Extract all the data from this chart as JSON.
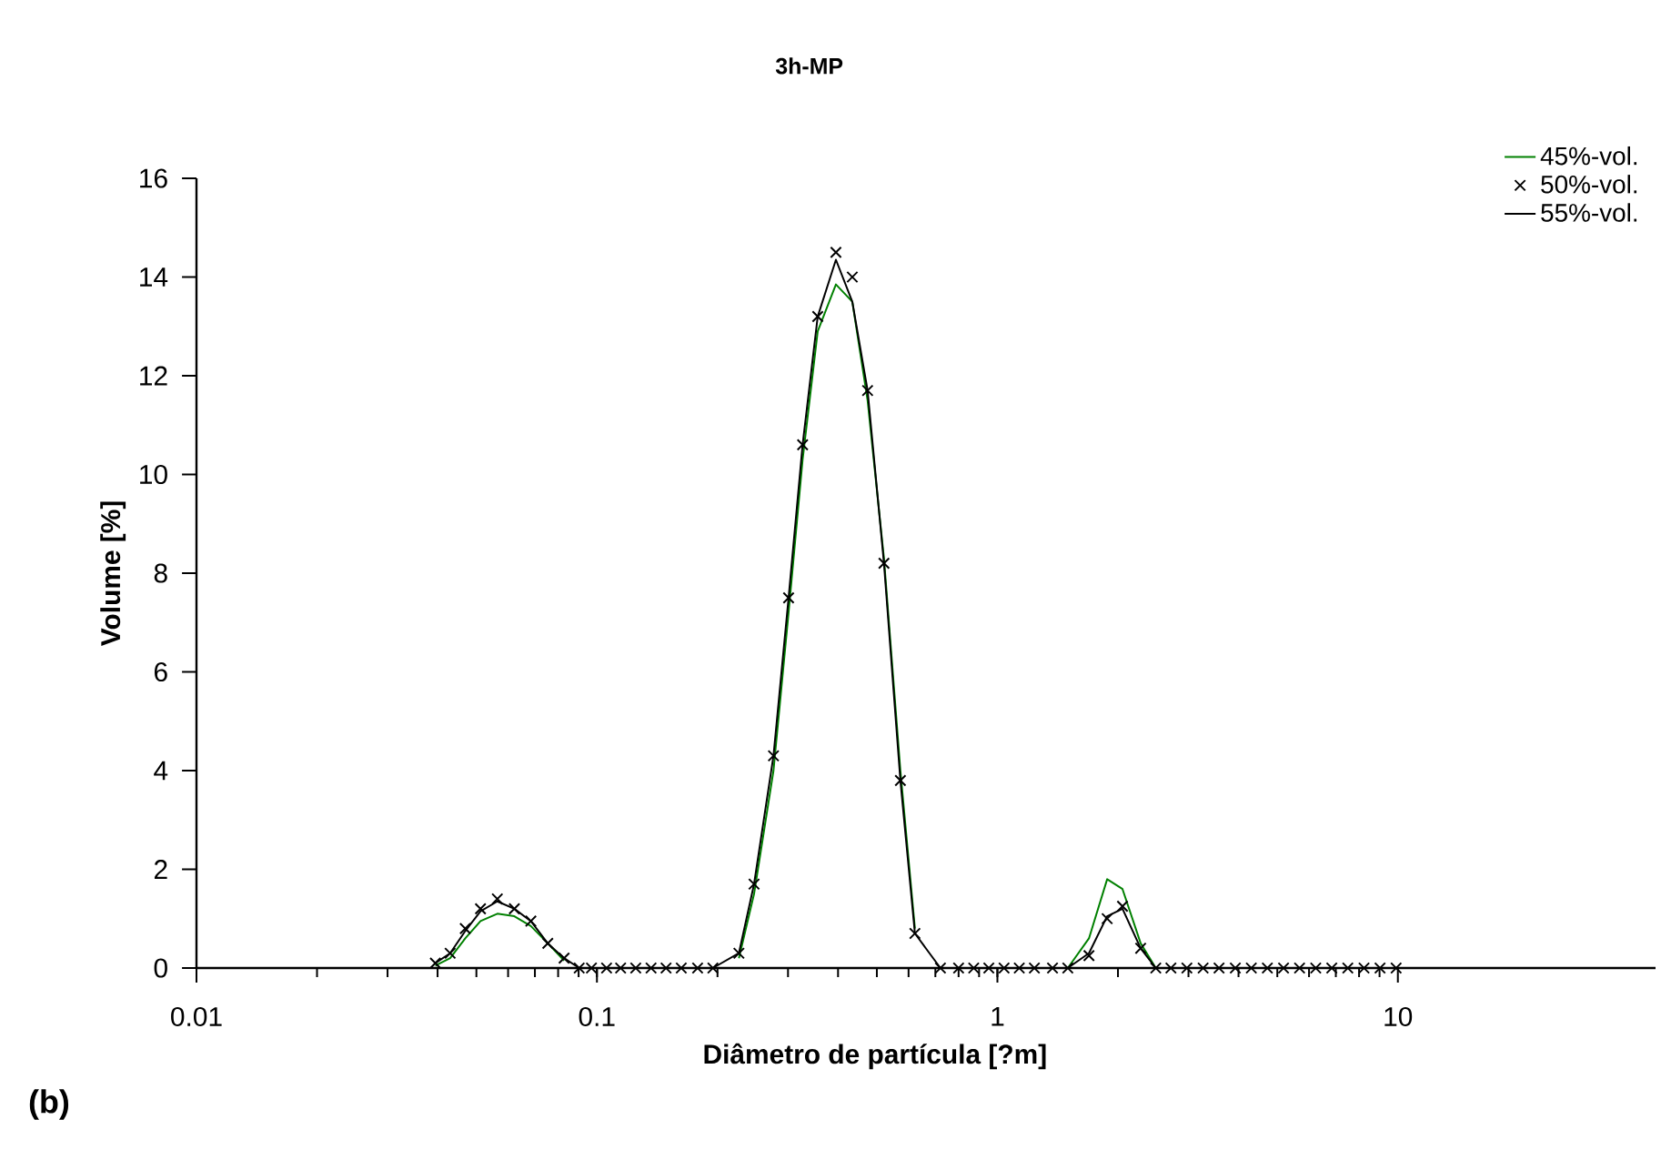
{
  "chart_data": {
    "type": "line",
    "title": "3h-MP",
    "xlabel": "Diâmetro de partícula [?m]",
    "ylabel": "Volume [%]",
    "annotations": [
      "**(b)**"
    ],
    "log": "x",
    "grid": false,
    "legend": "top right",
    "line_style": "solid",
    "xlim": [
      0.01,
      44
    ],
    "ylim": [
      0,
      16
    ],
    "xticks": [
      0.01,
      0.1,
      1,
      10
    ],
    "yticks": [
      0,
      2,
      4,
      6,
      8,
      10,
      12,
      14,
      16
    ],
    "x": [
      0.0395,
      0.043,
      0.0469,
      0.0512,
      0.0564,
      0.0622,
      0.0684,
      0.0754,
      0.0828,
      0.0903,
      0.0969,
      0.1057,
      0.1146,
      0.125,
      0.1365,
      0.1488,
      0.1624,
      0.1784,
      0.1948,
      0.2262,
      0.2468,
      0.276,
      0.301,
      0.3263,
      0.3559,
      0.3952,
      0.4342,
      0.4741,
      0.5209,
      0.5725,
      0.6224,
      0.7207,
      0.8,
      0.8727,
      0.9519,
      1.039,
      1.134,
      1.237,
      1.373,
      1.499,
      1.693,
      1.88,
      2.053,
      2.279,
      2.486,
      2.712,
      2.973,
      3.264,
      3.577,
      3.928,
      4.306,
      4.722,
      5.183,
      5.683,
      6.237,
      6.839,
      7.499,
      8.232,
      9.026,
      9.9
    ],
    "series": [
      {
        "name": "45%-vol.",
        "type": "line",
        "marker": "none",
        "color": "#008000",
        "values": [
          0.05,
          0.2,
          0.6,
          0.95,
          1.1,
          1.05,
          0.85,
          0.5,
          0.15,
          null,
          null,
          null,
          null,
          null,
          null,
          null,
          null,
          null,
          null,
          0.2,
          1.5,
          4.0,
          7.2,
          10.3,
          12.9,
          13.85,
          13.5,
          11.5,
          8.3,
          4.0,
          0.8,
          null,
          null,
          null,
          null,
          null,
          null,
          null,
          null,
          0,
          0.6,
          1.8,
          1.6,
          0.5,
          0,
          null,
          null,
          null,
          null,
          null,
          null,
          null,
          null,
          null,
          null,
          null,
          null,
          null,
          null,
          null
        ]
      },
      {
        "name": "50%-vol.",
        "type": "scatter",
        "marker": "cross",
        "color": "#000000",
        "values": [
          0.1,
          0.3,
          0.8,
          1.2,
          1.4,
          1.2,
          0.95,
          0.5,
          0.2,
          0,
          0,
          0,
          0,
          0,
          0,
          0,
          0,
          0,
          0,
          0.3,
          1.7,
          4.3,
          7.5,
          10.6,
          13.2,
          14.5,
          14.0,
          11.7,
          8.2,
          3.8,
          0.7,
          0,
          0,
          0,
          0,
          0,
          0,
          0,
          0,
          0,
          0.25,
          1.0,
          1.25,
          0.4,
          0,
          0,
          0,
          0,
          0,
          0,
          0,
          0,
          0,
          0,
          0,
          0,
          0,
          0,
          0,
          0
        ]
      },
      {
        "name": "55%-vol.",
        "type": "line",
        "marker": "none",
        "color": "#000000",
        "values": [
          0.1,
          0.3,
          0.75,
          1.15,
          1.35,
          1.2,
          0.95,
          0.5,
          0.2,
          0,
          0,
          0,
          0,
          0,
          0,
          0,
          0,
          0,
          0,
          0.3,
          1.7,
          4.3,
          7.5,
          10.6,
          13.2,
          14.35,
          13.5,
          11.7,
          8.2,
          3.8,
          0.7,
          0,
          0,
          0,
          0,
          0,
          0,
          0,
          0,
          0,
          0.3,
          1.05,
          1.2,
          0.4,
          0,
          0,
          0,
          0,
          0,
          0,
          0,
          0,
          0,
          0,
          0,
          0,
          0,
          0,
          0,
          0
        ]
      }
    ]
  }
}
